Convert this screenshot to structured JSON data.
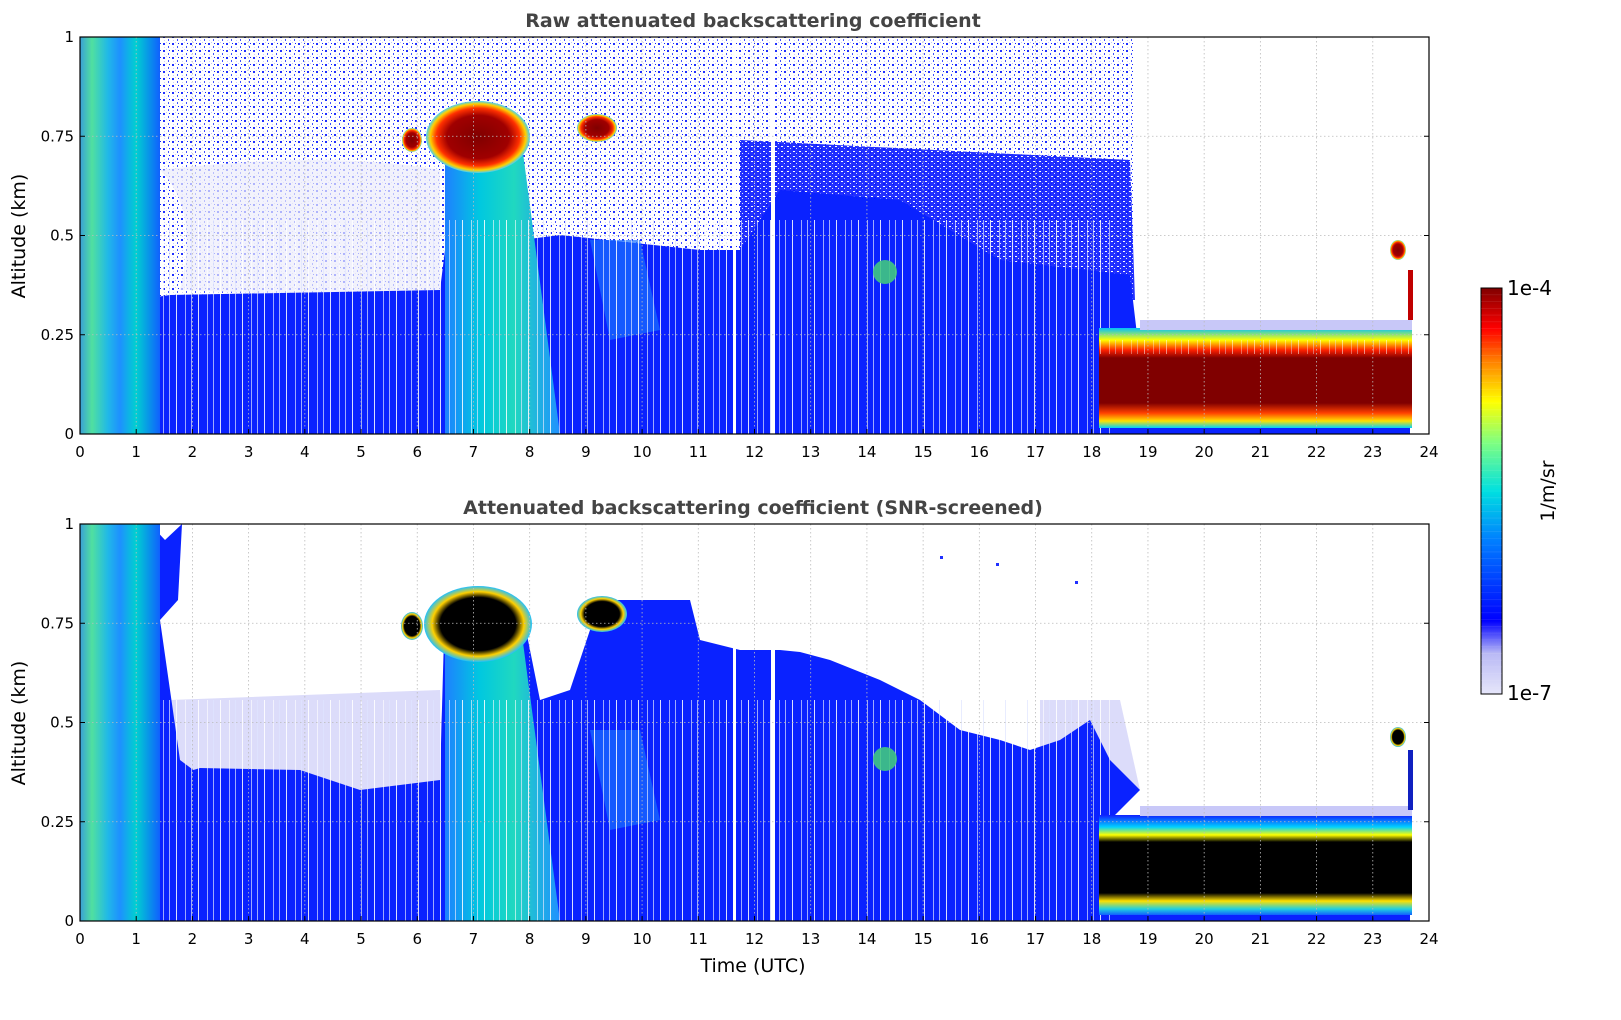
{
  "chart_data": [
    {
      "type": "heatmap",
      "title": "Raw attenuated backscattering coefficient",
      "xlabel": "",
      "ylabel": "Altitude (km)",
      "xlim": [
        0,
        24
      ],
      "ylim": [
        0,
        1
      ],
      "xticks": [
        "0",
        "1",
        "2",
        "3",
        "4",
        "5",
        "6",
        "7",
        "8",
        "9",
        "10",
        "11",
        "12",
        "13",
        "14",
        "15",
        "16",
        "17",
        "18",
        "19",
        "20",
        "21",
        "22",
        "23",
        "24"
      ],
      "yticks": [
        "0",
        "0.25",
        "0.5",
        "0.75",
        "1"
      ],
      "grid": true,
      "regions": [
        {
          "feature": "noise",
          "x": [
            1.0,
            18.8
          ],
          "y": [
            0.35,
            1.0
          ]
        },
        {
          "feature": "boundary-layer",
          "x": [
            1.7,
            18.2
          ],
          "y": [
            0.0,
            0.45
          ]
        },
        {
          "feature": "fog-column",
          "x": [
            0.0,
            1.6
          ],
          "y": [
            0.0,
            1.0
          ]
        },
        {
          "feature": "cloud",
          "x": [
            6.5,
            8.0
          ],
          "y": [
            0.62,
            0.82
          ]
        },
        {
          "feature": "cloud",
          "x": [
            5.8,
            6.1
          ],
          "y": [
            0.71,
            0.77
          ]
        },
        {
          "feature": "cloud",
          "x": [
            8.9,
            9.6
          ],
          "y": [
            0.73,
            0.79
          ]
        },
        {
          "feature": "cloud",
          "x": [
            18.1,
            23.7
          ],
          "y": [
            0.05,
            0.24
          ]
        },
        {
          "feature": "cloud",
          "x": [
            23.3,
            23.7
          ],
          "y": [
            0.42,
            0.48
          ]
        }
      ]
    },
    {
      "type": "heatmap",
      "title": "Attenuated backscattering coefficient (SNR-screened)",
      "xlabel": "Time (UTC)",
      "ylabel": "Altitude (km)",
      "xlim": [
        0,
        24
      ],
      "ylim": [
        0,
        1
      ],
      "xticks": [
        "0",
        "1",
        "2",
        "3",
        "4",
        "5",
        "6",
        "7",
        "8",
        "9",
        "10",
        "11",
        "12",
        "13",
        "14",
        "15",
        "16",
        "17",
        "18",
        "19",
        "20",
        "21",
        "22",
        "23",
        "24"
      ],
      "yticks": [
        "0",
        "0.25",
        "0.5",
        "0.75",
        "1"
      ],
      "grid": true,
      "regions": [
        {
          "feature": "screened-out",
          "x": [
            1.8,
            18.8
          ],
          "y": [
            0.5,
            1.0
          ]
        },
        {
          "feature": "boundary-layer",
          "x": [
            1.7,
            18.2
          ],
          "y": [
            0.0,
            0.68
          ]
        },
        {
          "feature": "fog-column",
          "x": [
            0.0,
            1.8
          ],
          "y": [
            0.0,
            1.0
          ]
        },
        {
          "feature": "saturated",
          "x": [
            6.5,
            8.0
          ],
          "y": [
            0.66,
            0.82
          ]
        },
        {
          "feature": "saturated",
          "x": [
            18.1,
            23.7
          ],
          "y": [
            0.06,
            0.21
          ]
        }
      ]
    }
  ],
  "colorbar": {
    "label": "1/m/sr",
    "max_label": "1e-4",
    "min_label": "1e-7",
    "scale": "log",
    "range": [
      1e-07,
      0.0001
    ]
  }
}
